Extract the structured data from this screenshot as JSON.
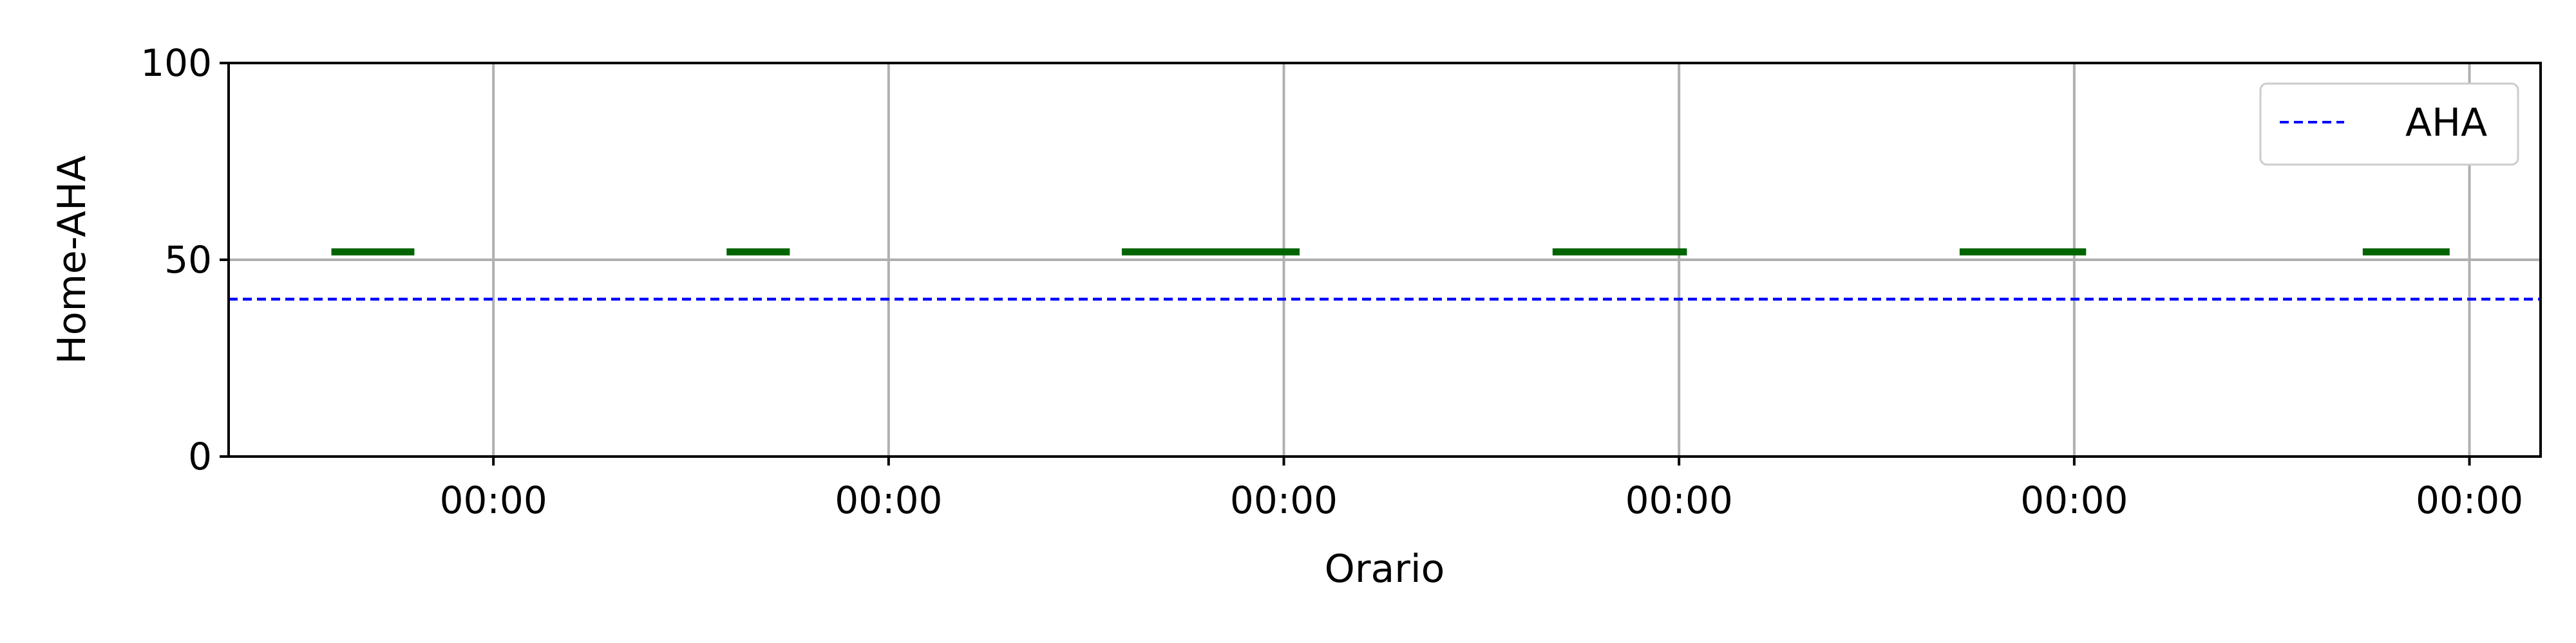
{
  "chart_data": {
    "type": "line",
    "xlabel": "Orario",
    "ylabel": "Home-AHA",
    "ylim": [
      0,
      100
    ],
    "xlim": [
      -0.67,
      5.18
    ],
    "yticks": [
      0,
      50,
      100
    ],
    "xticks": [
      0,
      1,
      2,
      3,
      4,
      5
    ],
    "xtick_labels": [
      "00:00",
      "00:00",
      "00:00",
      "00:00",
      "00:00",
      "00:00"
    ],
    "grid": true,
    "legend": {
      "placement": "top-right",
      "entries": [
        {
          "label": "AHA",
          "style": "dashed",
          "color": "#0000ff"
        }
      ]
    },
    "reference_line": {
      "name": "AHA",
      "y": 40,
      "color": "#0000ff",
      "style": "dashed"
    },
    "segments": [
      {
        "x_start": -0.41,
        "x_end": -0.2,
        "y": 52
      },
      {
        "x_start": 0.59,
        "x_end": 0.75,
        "y": 52
      },
      {
        "x_start": 1.59,
        "x_end": 2.04,
        "y": 52
      },
      {
        "x_start": 2.68,
        "x_end": 3.02,
        "y": 52
      },
      {
        "x_start": 3.71,
        "x_end": 4.03,
        "y": 52
      },
      {
        "x_start": 4.73,
        "x_end": 4.95,
        "y": 52
      }
    ],
    "segment_color": "#006400"
  }
}
